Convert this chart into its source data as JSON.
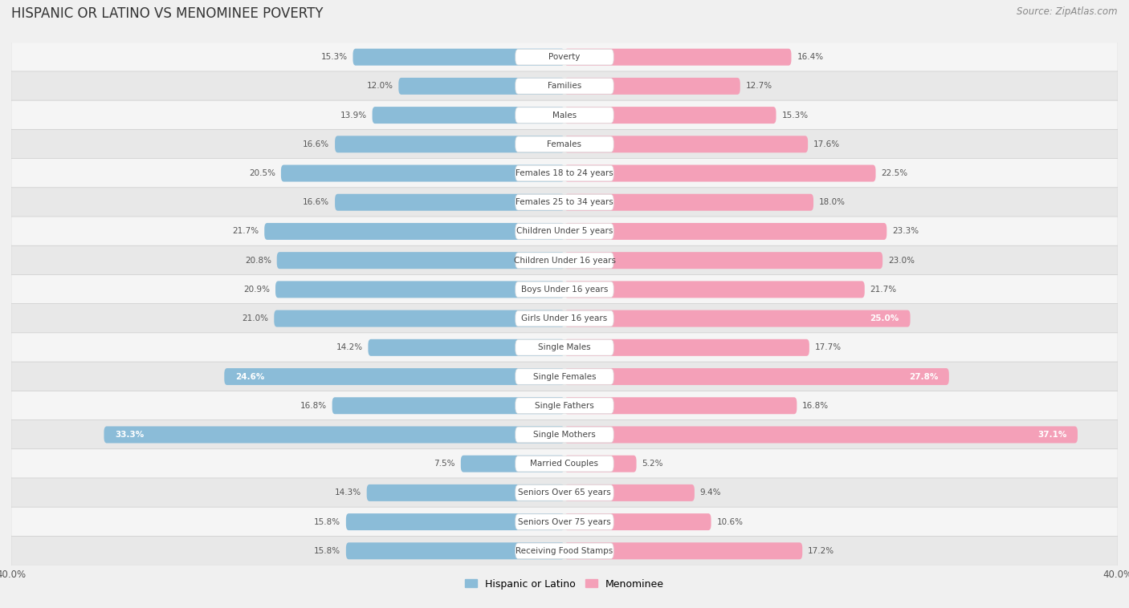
{
  "title": "HISPANIC OR LATINO VS MENOMINEE POVERTY",
  "source": "Source: ZipAtlas.com",
  "categories": [
    "Poverty",
    "Families",
    "Males",
    "Females",
    "Females 18 to 24 years",
    "Females 25 to 34 years",
    "Children Under 5 years",
    "Children Under 16 years",
    "Boys Under 16 years",
    "Girls Under 16 years",
    "Single Males",
    "Single Females",
    "Single Fathers",
    "Single Mothers",
    "Married Couples",
    "Seniors Over 65 years",
    "Seniors Over 75 years",
    "Receiving Food Stamps"
  ],
  "hispanic_values": [
    15.3,
    12.0,
    13.9,
    16.6,
    20.5,
    16.6,
    21.7,
    20.8,
    20.9,
    21.0,
    14.2,
    24.6,
    16.8,
    33.3,
    7.5,
    14.3,
    15.8,
    15.8
  ],
  "menominee_values": [
    16.4,
    12.7,
    15.3,
    17.6,
    22.5,
    18.0,
    23.3,
    23.0,
    21.7,
    25.0,
    17.7,
    27.8,
    16.8,
    37.1,
    5.2,
    9.4,
    10.6,
    17.2
  ],
  "hispanic_color": "#8bbcd8",
  "menominee_color": "#f4a0b8",
  "row_colors": [
    "#f5f5f5",
    "#e8e8e8"
  ],
  "background_color": "#f0f0f0",
  "xlim": 40.0,
  "bar_height": 0.58,
  "legend_label_hispanic": "Hispanic or Latino",
  "legend_label_menominee": "Menominee",
  "title_fontsize": 12,
  "source_fontsize": 8.5,
  "category_fontsize": 7.5,
  "value_fontsize": 7.5,
  "axis_fontsize": 8.5,
  "bold_threshold_hispanic": 24.0,
  "bold_threshold_menominee": 24.0
}
